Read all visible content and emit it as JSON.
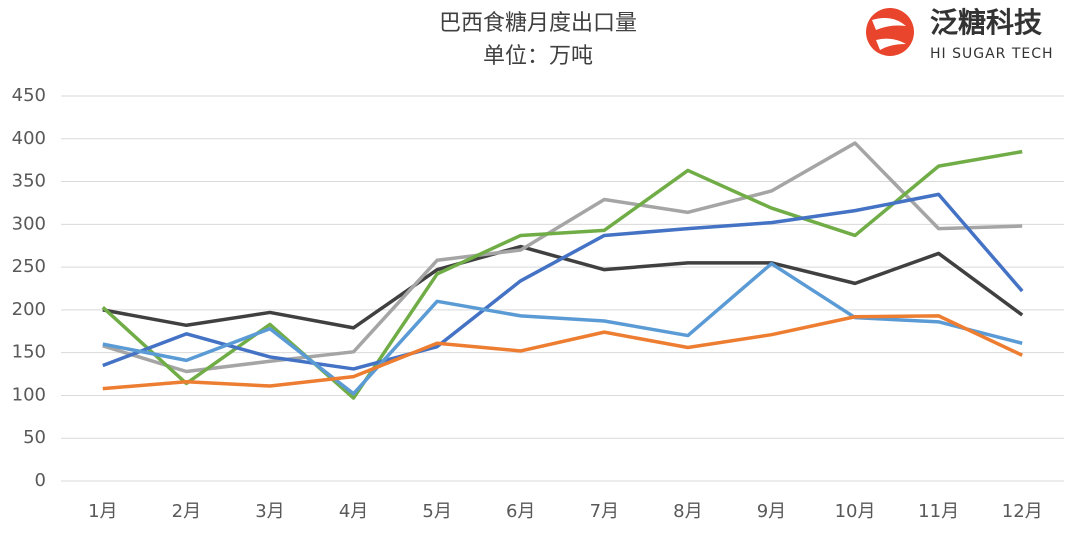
{
  "chart_data": {
    "type": "line",
    "title": "巴西食糖月度出口量",
    "subtitle": "单位：万吨",
    "logo": {
      "name": "泛糖科技",
      "tagline": "HI SUGAR TECH"
    },
    "categories": [
      "1月",
      "2月",
      "3月",
      "4月",
      "5月",
      "6月",
      "7月",
      "8月",
      "9月",
      "10月",
      "11月",
      "12月"
    ],
    "series": [
      {
        "color": "#404040",
        "values": [
          200,
          182,
          197,
          179,
          247,
          274,
          247,
          255,
          255,
          231,
          266,
          194
        ]
      },
      {
        "color": "#a5a5a5",
        "values": [
          158,
          128,
          140,
          151,
          258,
          270,
          329,
          314,
          339,
          395,
          295,
          298
        ]
      },
      {
        "color": "#70ad47",
        "values": [
          203,
          114,
          183,
          97,
          242,
          287,
          293,
          363,
          319,
          287,
          368,
          385
        ]
      },
      {
        "color": "#4472c4",
        "values": [
          135,
          172,
          145,
          131,
          157,
          234,
          287,
          295,
          302,
          316,
          335,
          222
        ]
      },
      {
        "color": "#5b9bd5",
        "values": [
          160,
          141,
          178,
          102,
          210,
          193,
          187,
          170,
          254,
          191,
          186,
          161
        ]
      },
      {
        "color": "#ed7d31",
        "values": [
          108,
          116,
          111,
          122,
          161,
          152,
          174,
          156,
          171,
          192,
          193,
          147
        ]
      }
    ],
    "ylim": [
      0,
      450
    ],
    "yticks": [
      0,
      50,
      100,
      150,
      200,
      250,
      300,
      350,
      400,
      450
    ],
    "grid": true
  }
}
